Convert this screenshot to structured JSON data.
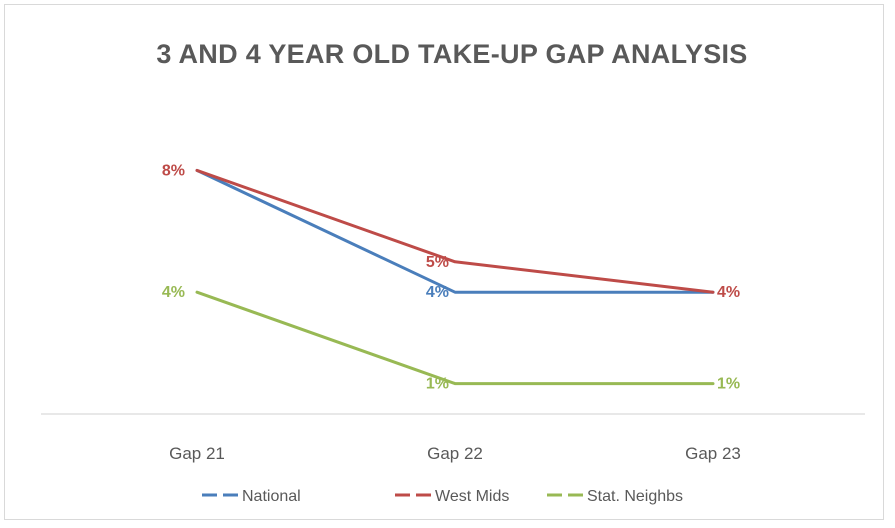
{
  "chart_data": {
    "type": "line",
    "title": "3 AND 4 YEAR OLD TAKE-UP GAP ANALYSIS",
    "categories": [
      "Gap 21",
      "Gap 22",
      "Gap 23"
    ],
    "ylim": [
      0,
      9
    ],
    "grid": false,
    "legend": "bottom",
    "series": [
      {
        "name": "National",
        "values": [
          8,
          4,
          4
        ],
        "color": "#4a7ebb",
        "labels": [
          null,
          "4%",
          null
        ]
      },
      {
        "name": "West Mids",
        "values": [
          8,
          5,
          4
        ],
        "color": "#be4b48",
        "labels": [
          "8%",
          "5%",
          "4%"
        ]
      },
      {
        "name": "Stat. Neighbs",
        "values": [
          4,
          1,
          1
        ],
        "color": "#98b954",
        "labels": [
          "4%",
          "1%",
          "1%"
        ]
      }
    ]
  }
}
